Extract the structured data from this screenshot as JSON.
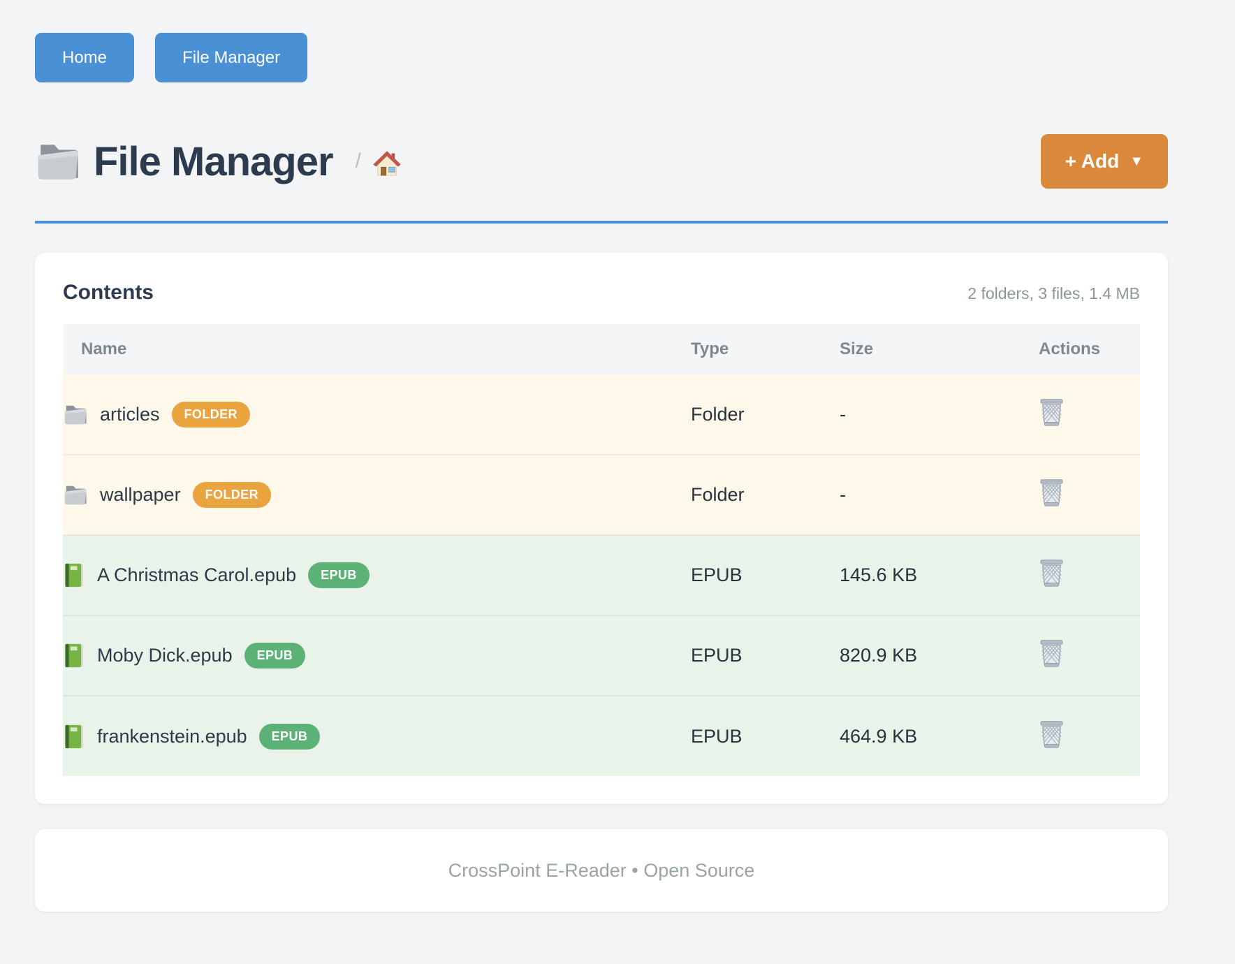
{
  "nav": {
    "buttons": [
      {
        "label": "Home"
      },
      {
        "label": "File Manager"
      }
    ]
  },
  "header": {
    "title": "File Manager",
    "title_icon": "folder-icon",
    "breadcrumb_separator": "/",
    "breadcrumb_home_icon": "house-icon",
    "add_button": {
      "label": "+ Add",
      "caret": "▼"
    }
  },
  "contents": {
    "title": "Contents",
    "summary": "2 folders, 3 files, 1.4 MB",
    "table": {
      "columns": [
        "Name",
        "Type",
        "Size",
        "Actions"
      ],
      "rows": [
        {
          "name": "articles",
          "badge": "FOLDER",
          "type": "Folder",
          "size": "-",
          "kind": "folder",
          "icon": "folder-icon",
          "action_icon": "trash-icon"
        },
        {
          "name": "wallpaper",
          "badge": "FOLDER",
          "type": "Folder",
          "size": "-",
          "kind": "folder",
          "icon": "folder-icon",
          "action_icon": "trash-icon"
        },
        {
          "name": "A Christmas Carol.epub",
          "badge": "EPUB",
          "type": "EPUB",
          "size": "145.6 KB",
          "kind": "epub",
          "icon": "book-icon",
          "action_icon": "trash-icon"
        },
        {
          "name": "Moby Dick.epub",
          "badge": "EPUB",
          "type": "EPUB",
          "size": "820.9 KB",
          "kind": "epub",
          "icon": "book-icon",
          "action_icon": "trash-icon"
        },
        {
          "name": "frankenstein.epub",
          "badge": "EPUB",
          "type": "EPUB",
          "size": "464.9 KB",
          "kind": "epub",
          "icon": "book-icon",
          "action_icon": "trash-icon"
        }
      ]
    }
  },
  "footer": {
    "text": "CrossPoint E-Reader • Open Source"
  },
  "colors": {
    "accent_blue": "#4a90d5",
    "add_orange": "#d9883c",
    "badge_folder": "#e9a33f",
    "badge_epub": "#5cb176",
    "row_folder_bg": "#fdf8e9",
    "row_epub_bg": "#e9f3e9",
    "page_bg": "#f3f4f5"
  }
}
